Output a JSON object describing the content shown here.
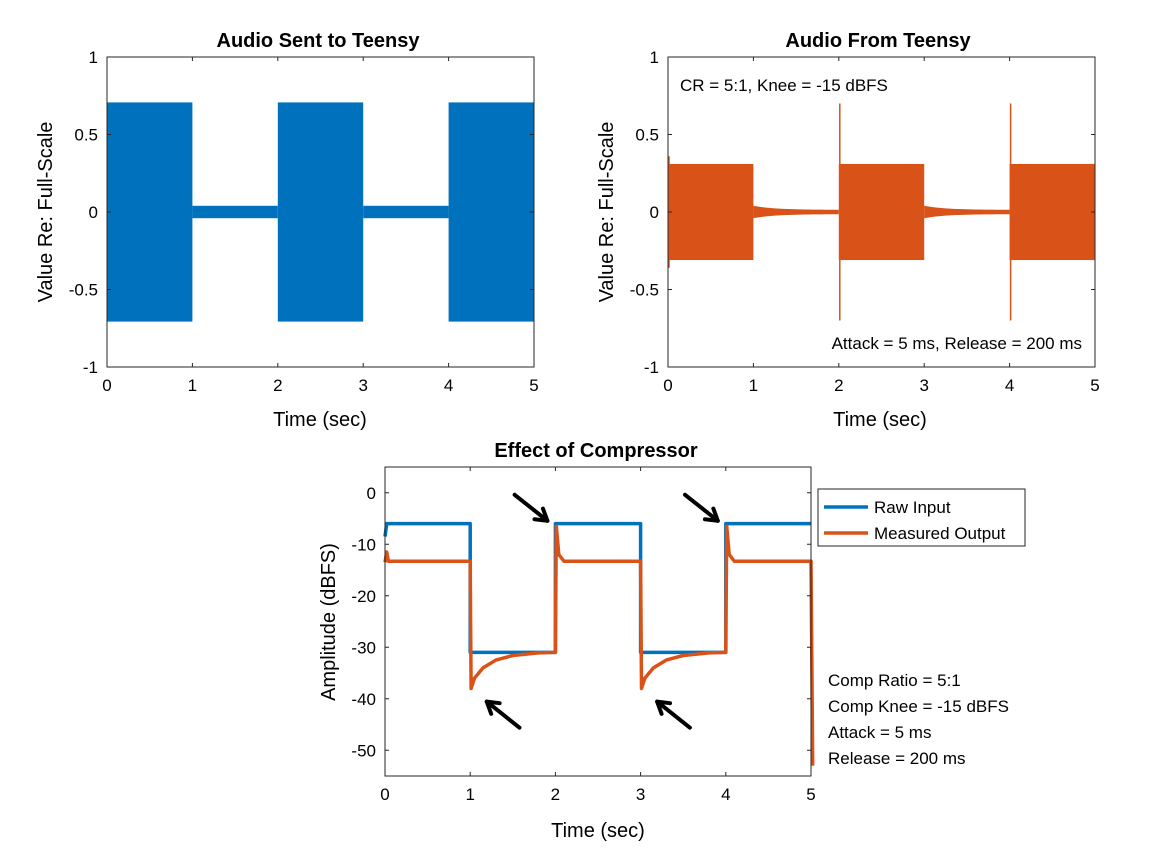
{
  "chart_data": [
    {
      "type": "area",
      "title": "Audio Sent to Teensy",
      "xlabel": "Time (sec)",
      "ylabel": "Value Re: Full-Scale",
      "xlim": [
        0,
        5
      ],
      "ylim": [
        -1,
        1
      ],
      "xticks": [
        "0",
        "1",
        "2",
        "3",
        "4",
        "5"
      ],
      "yticks": [
        "1",
        "0.5",
        "0",
        "-0.5",
        "-1"
      ],
      "color": "#0072BD",
      "envelope": [
        {
          "x0": 0,
          "x1": 1,
          "amp": 0.707
        },
        {
          "x0": 1,
          "x1": 2,
          "amp": 0.04
        },
        {
          "x0": 2,
          "x1": 3,
          "amp": 0.707
        },
        {
          "x0": 3,
          "x1": 4,
          "amp": 0.04
        },
        {
          "x0": 4,
          "x1": 5,
          "amp": 0.707
        }
      ],
      "annotations": []
    },
    {
      "type": "area",
      "title": "Audio From Teensy",
      "xlabel": "Time (sec)",
      "ylabel": "Value Re: Full-Scale",
      "xlim": [
        0,
        5
      ],
      "ylim": [
        -1,
        1
      ],
      "xticks": [
        "0",
        "1",
        "2",
        "3",
        "4",
        "5"
      ],
      "yticks": [
        "1",
        "0.5",
        "0",
        "-0.5",
        "-1"
      ],
      "color": "#D95319",
      "envelope": [
        {
          "x0": 0,
          "x1": 1,
          "amp": 0.31
        },
        {
          "x0": 1,
          "x1": 2,
          "amp": 0.04,
          "decay_to": 0.014
        },
        {
          "x0": 2,
          "x1": 3,
          "amp": 0.31
        },
        {
          "x0": 3,
          "x1": 4,
          "amp": 0.04,
          "decay_to": 0.014
        },
        {
          "x0": 4,
          "x1": 5,
          "amp": 0.31
        }
      ],
      "spikes": [
        {
          "x": 0,
          "amp": 0.36
        },
        {
          "x": 2,
          "amp": 0.7
        },
        {
          "x": 4,
          "amp": 0.7
        }
      ],
      "annotations": [
        {
          "text": "CR = 5:1, Knee = -15 dBFS",
          "position": "top-left"
        },
        {
          "text": "Attack = 5 ms, Release = 200 ms",
          "position": "bottom-right"
        }
      ]
    },
    {
      "type": "line",
      "title": "Effect of Compressor",
      "xlabel": "Time (sec)",
      "ylabel": "Amplitude (dBFS)",
      "xlim": [
        0,
        5
      ],
      "ylim": [
        -55,
        5
      ],
      "xticks": [
        "0",
        "1",
        "2",
        "3",
        "4",
        "5"
      ],
      "yticks": [
        "0",
        "-10",
        "-20",
        "-30",
        "-40",
        "-50"
      ],
      "legend_position": "outside-top-right",
      "series": [
        {
          "name": "Raw Input",
          "color": "#0072BD",
          "points": [
            [
              0,
              -8.5
            ],
            [
              0.02,
              -6
            ],
            [
              1,
              -6
            ],
            [
              1,
              -31
            ],
            [
              2,
              -31
            ],
            [
              2,
              -6
            ],
            [
              3,
              -6
            ],
            [
              3,
              -31
            ],
            [
              4,
              -31
            ],
            [
              4,
              -6
            ],
            [
              5,
              -6
            ]
          ]
        },
        {
          "name": "Measured Output",
          "color": "#D95319",
          "points": [
            [
              0,
              -13.5
            ],
            [
              0.02,
              -11.5
            ],
            [
              0.04,
              -13.3
            ],
            [
              1,
              -13.3
            ],
            [
              1.01,
              -38
            ],
            [
              1.05,
              -36
            ],
            [
              1.15,
              -34
            ],
            [
              1.3,
              -32.5
            ],
            [
              1.5,
              -31.6
            ],
            [
              1.8,
              -31.1
            ],
            [
              2,
              -31
            ],
            [
              2.01,
              -6.5
            ],
            [
              2.04,
              -12
            ],
            [
              2.1,
              -13.3
            ],
            [
              3,
              -13.3
            ],
            [
              3.01,
              -38
            ],
            [
              3.05,
              -36
            ],
            [
              3.15,
              -34
            ],
            [
              3.3,
              -32.5
            ],
            [
              3.5,
              -31.6
            ],
            [
              3.8,
              -31.1
            ],
            [
              4,
              -31
            ],
            [
              4.01,
              -6.5
            ],
            [
              4.04,
              -12
            ],
            [
              4.1,
              -13.3
            ],
            [
              5,
              -13.3
            ],
            [
              5.02,
              -53
            ]
          ]
        }
      ],
      "annotations": [
        {
          "text": "Comp Ratio = 5:1"
        },
        {
          "text": "Comp Knee = -15 dBFS"
        },
        {
          "text": "Attack = 5 ms"
        },
        {
          "text": "Release = 200 ms"
        }
      ],
      "arrows": [
        {
          "target": [
            2,
            -7
          ],
          "direction": "from-upper-left"
        },
        {
          "target": [
            4,
            -7
          ],
          "direction": "from-upper-left"
        },
        {
          "target": [
            1.1,
            -39
          ],
          "direction": "from-lower-right"
        },
        {
          "target": [
            3.1,
            -39
          ],
          "direction": "from-lower-right"
        }
      ]
    }
  ]
}
